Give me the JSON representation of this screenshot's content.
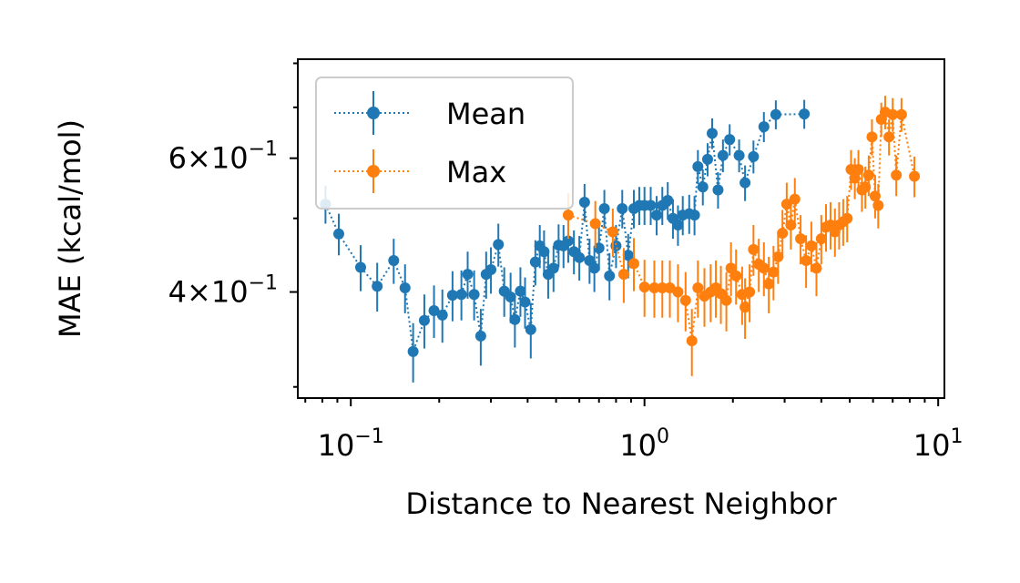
{
  "chart_data": {
    "type": "scatter",
    "xlabel": "Distance to Nearest Neighbor",
    "ylabel": "MAE (kcal/mol)",
    "xscale": "log",
    "yscale": "log",
    "xlim": [
      0.066,
      10.5
    ],
    "ylim": [
      0.29,
      0.81
    ],
    "x_ticks": [
      {
        "value": 0.1,
        "base": "10",
        "exp": "−1"
      },
      {
        "value": 1,
        "base": "10",
        "exp": "0"
      },
      {
        "value": 10,
        "base": "10",
        "exp": "1"
      }
    ],
    "y_ticks": [
      {
        "value": 0.4,
        "mant": "4",
        "base": "10",
        "exp": "−1"
      },
      {
        "value": 0.6,
        "mant": "6",
        "base": "10",
        "exp": "−1"
      }
    ],
    "grid": false,
    "legend": "top-left",
    "series": [
      {
        "name": "Mean",
        "color": "#1f77b4",
        "line_style": "dotted",
        "marker": "circle",
        "error_bars": true,
        "points": [
          [
            0.082,
            0.522,
            0.03
          ],
          [
            0.091,
            0.477,
            0.03
          ],
          [
            0.108,
            0.431,
            0.03
          ],
          [
            0.123,
            0.407,
            0.03
          ],
          [
            0.14,
            0.44,
            0.03
          ],
          [
            0.153,
            0.405,
            0.03
          ],
          [
            0.163,
            0.334,
            0.03
          ],
          [
            0.178,
            0.367,
            0.03
          ],
          [
            0.192,
            0.378,
            0.03
          ],
          [
            0.205,
            0.373,
            0.03
          ],
          [
            0.222,
            0.396,
            0.03
          ],
          [
            0.238,
            0.397,
            0.03
          ],
          [
            0.25,
            0.422,
            0.03
          ],
          [
            0.263,
            0.397,
            0.03
          ],
          [
            0.277,
            0.35,
            0.03
          ],
          [
            0.289,
            0.422,
            0.03
          ],
          [
            0.3,
            0.428,
            0.03
          ],
          [
            0.318,
            0.462,
            0.03
          ],
          [
            0.333,
            0.401,
            0.03
          ],
          [
            0.35,
            0.394,
            0.03
          ],
          [
            0.362,
            0.368,
            0.03
          ],
          [
            0.378,
            0.401,
            0.03
          ],
          [
            0.392,
            0.388,
            0.03
          ],
          [
            0.41,
            0.357,
            0.03
          ],
          [
            0.425,
            0.438,
            0.03
          ],
          [
            0.44,
            0.46,
            0.03
          ],
          [
            0.455,
            0.452,
            0.03
          ],
          [
            0.47,
            0.422,
            0.03
          ],
          [
            0.49,
            0.43,
            0.03
          ],
          [
            0.51,
            0.461,
            0.03
          ],
          [
            0.53,
            0.46,
            0.03
          ],
          [
            0.55,
            0.467,
            0.03
          ],
          [
            0.575,
            0.452,
            0.03
          ],
          [
            0.6,
            0.444,
            0.03
          ],
          [
            0.625,
            0.525,
            0.03
          ],
          [
            0.65,
            0.44,
            0.03
          ],
          [
            0.675,
            0.43,
            0.03
          ],
          [
            0.7,
            0.457,
            0.03
          ],
          [
            0.73,
            0.515,
            0.03
          ],
          [
            0.76,
            0.42,
            0.03
          ],
          [
            0.8,
            0.46,
            0.03
          ],
          [
            0.84,
            0.515,
            0.03
          ],
          [
            0.88,
            0.447,
            0.03
          ],
          [
            0.92,
            0.515,
            0.03
          ],
          [
            0.96,
            0.52,
            0.03
          ],
          [
            1.0,
            0.52,
            0.03
          ],
          [
            1.05,
            0.52,
            0.03
          ],
          [
            1.1,
            0.505,
            0.03
          ],
          [
            1.15,
            0.52,
            0.03
          ],
          [
            1.2,
            0.528,
            0.03
          ],
          [
            1.25,
            0.5,
            0.03
          ],
          [
            1.3,
            0.49,
            0.03
          ],
          [
            1.35,
            0.505,
            0.03
          ],
          [
            1.42,
            0.507,
            0.03
          ],
          [
            1.48,
            0.505,
            0.03
          ],
          [
            1.52,
            0.585,
            0.03
          ],
          [
            1.58,
            0.55,
            0.03
          ],
          [
            1.64,
            0.598,
            0.03
          ],
          [
            1.7,
            0.647,
            0.03
          ],
          [
            1.78,
            0.545,
            0.03
          ],
          [
            1.85,
            0.605,
            0.03
          ],
          [
            1.95,
            0.635,
            0.03
          ],
          [
            2.1,
            0.605,
            0.03
          ],
          [
            2.2,
            0.557,
            0.03
          ],
          [
            2.35,
            0.603,
            0.03
          ],
          [
            2.55,
            0.66,
            0.03
          ],
          [
            2.8,
            0.685,
            0.03
          ],
          [
            3.5,
            0.686,
            0.03
          ]
        ]
      },
      {
        "name": "Max",
        "color": "#ff7f0e",
        "line_style": "dotted",
        "marker": "circle",
        "error_bars": true,
        "points": [
          [
            0.55,
            0.505,
            0.035
          ],
          [
            0.68,
            0.492,
            0.035
          ],
          [
            0.78,
            0.48,
            0.035
          ],
          [
            0.85,
            0.422,
            0.035
          ],
          [
            0.92,
            0.436,
            0.035
          ],
          [
            1.0,
            0.406,
            0.035
          ],
          [
            1.08,
            0.405,
            0.035
          ],
          [
            1.15,
            0.405,
            0.035
          ],
          [
            1.22,
            0.405,
            0.035
          ],
          [
            1.3,
            0.4,
            0.035
          ],
          [
            1.38,
            0.39,
            0.035
          ],
          [
            1.45,
            0.345,
            0.035
          ],
          [
            1.52,
            0.405,
            0.035
          ],
          [
            1.6,
            0.395,
            0.035
          ],
          [
            1.68,
            0.4,
            0.035
          ],
          [
            1.75,
            0.405,
            0.035
          ],
          [
            1.82,
            0.398,
            0.035
          ],
          [
            1.9,
            0.39,
            0.035
          ],
          [
            1.97,
            0.43,
            0.035
          ],
          [
            2.05,
            0.42,
            0.035
          ],
          [
            2.15,
            0.397,
            0.035
          ],
          [
            2.2,
            0.382,
            0.035
          ],
          [
            2.28,
            0.4,
            0.035
          ],
          [
            2.35,
            0.455,
            0.035
          ],
          [
            2.45,
            0.435,
            0.035
          ],
          [
            2.55,
            0.43,
            0.035
          ],
          [
            2.65,
            0.41,
            0.035
          ],
          [
            2.75,
            0.425,
            0.035
          ],
          [
            2.85,
            0.445,
            0.035
          ],
          [
            2.95,
            0.478,
            0.035
          ],
          [
            3.05,
            0.522,
            0.035
          ],
          [
            3.15,
            0.49,
            0.035
          ],
          [
            3.25,
            0.53,
            0.035
          ],
          [
            3.4,
            0.47,
            0.035
          ],
          [
            3.55,
            0.44,
            0.035
          ],
          [
            3.7,
            0.46,
            0.035
          ],
          [
            3.85,
            0.43,
            0.035
          ],
          [
            4.0,
            0.47,
            0.035
          ],
          [
            4.15,
            0.487,
            0.035
          ],
          [
            4.3,
            0.49,
            0.035
          ],
          [
            4.45,
            0.48,
            0.035
          ],
          [
            4.6,
            0.49,
            0.035
          ],
          [
            4.75,
            0.495,
            0.035
          ],
          [
            4.9,
            0.5,
            0.035
          ],
          [
            5.05,
            0.58,
            0.035
          ],
          [
            5.2,
            0.565,
            0.035
          ],
          [
            5.35,
            0.58,
            0.035
          ],
          [
            5.5,
            0.545,
            0.035
          ],
          [
            5.65,
            0.55,
            0.035
          ],
          [
            5.8,
            0.57,
            0.035
          ],
          [
            5.95,
            0.64,
            0.035
          ],
          [
            6.1,
            0.535,
            0.035
          ],
          [
            6.25,
            0.52,
            0.035
          ],
          [
            6.4,
            0.675,
            0.035
          ],
          [
            6.6,
            0.69,
            0.035
          ],
          [
            6.8,
            0.64,
            0.035
          ],
          [
            7.0,
            0.685,
            0.035
          ],
          [
            7.2,
            0.57,
            0.035
          ],
          [
            7.5,
            0.685,
            0.035
          ],
          [
            8.3,
            0.568,
            0.035
          ]
        ]
      }
    ]
  }
}
